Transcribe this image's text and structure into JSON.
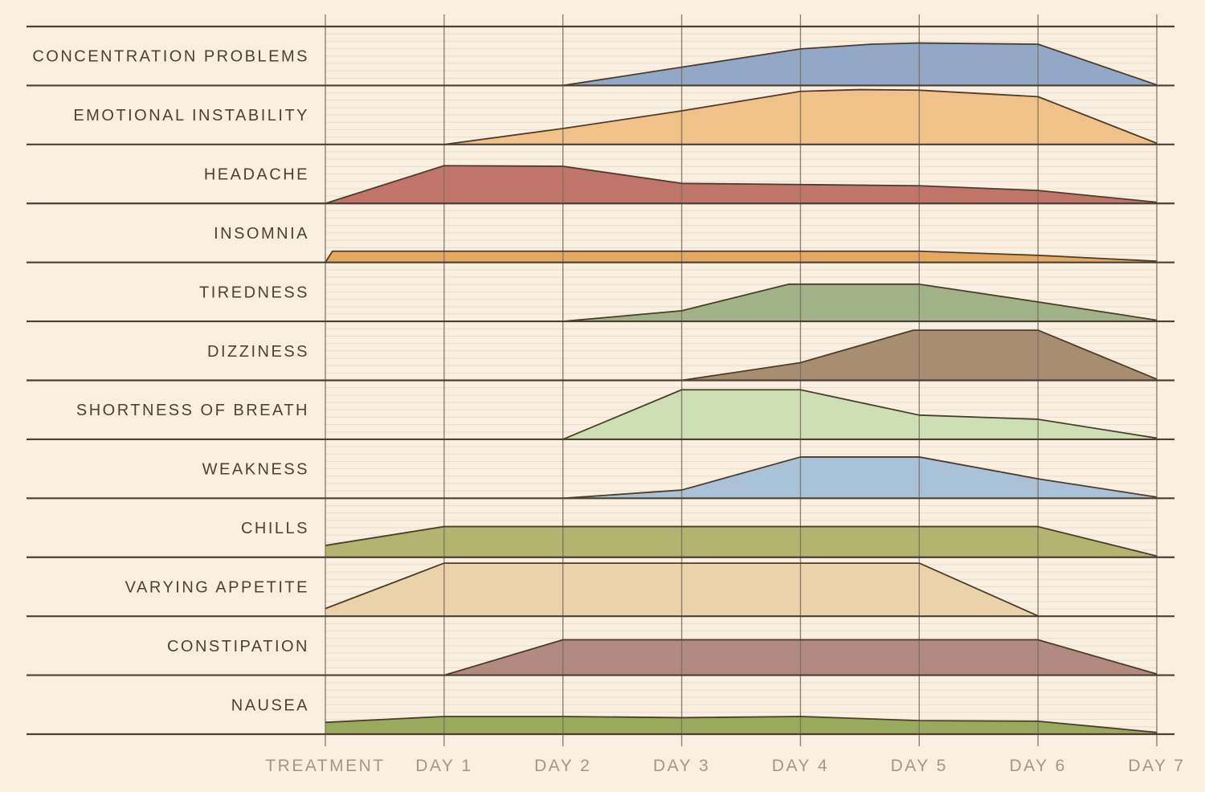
{
  "chart_data": {
    "type": "area",
    "variant": "ridgeline-small-multiples",
    "title": "",
    "xlabel": "",
    "ylabel": "",
    "grid": "ruled horizontal lines per row plus vertical day gridlines",
    "legend_position": "none",
    "x_categories": [
      "TREATMENT",
      "DAY 1",
      "DAY 2",
      "DAY 3",
      "DAY 4",
      "DAY 5",
      "DAY 6",
      "DAY 7"
    ],
    "value_units": "symptom intensity as fraction of row height (0 = none, 1 = row top)",
    "series": [
      {
        "label": "CONCENTRATION PROBLEMS",
        "color": "#93a7c7",
        "points": [
          [
            2,
            0
          ],
          [
            3,
            0.31
          ],
          [
            4,
            0.62
          ],
          [
            4.6,
            0.7
          ],
          [
            5,
            0.72
          ],
          [
            6,
            0.7
          ],
          [
            7,
            0.01
          ]
        ]
      },
      {
        "label": "EMOTIONAL INSTABILITY",
        "color": "#f0c28a",
        "points": [
          [
            1,
            0
          ],
          [
            2,
            0.27
          ],
          [
            3,
            0.57
          ],
          [
            4,
            0.9
          ],
          [
            4.5,
            0.93
          ],
          [
            5,
            0.92
          ],
          [
            6,
            0.81
          ],
          [
            7,
            0.02
          ]
        ]
      },
      {
        "label": "HEADACHE",
        "color": "#c1756a",
        "points": [
          [
            0,
            0
          ],
          [
            1,
            0.64
          ],
          [
            2,
            0.63
          ],
          [
            3,
            0.34
          ],
          [
            4,
            0.32
          ],
          [
            5,
            0.3
          ],
          [
            6,
            0.22
          ],
          [
            7,
            0.02
          ]
        ]
      },
      {
        "label": "INSOMNIA",
        "color": "#e3a960",
        "points": [
          [
            0,
            0
          ],
          [
            0.06,
            0.19
          ],
          [
            5,
            0.19
          ],
          [
            6,
            0.12
          ],
          [
            7,
            0.02
          ]
        ]
      },
      {
        "label": "TIREDNESS",
        "color": "#a1b287",
        "points": [
          [
            2,
            0
          ],
          [
            3,
            0.18
          ],
          [
            3.9,
            0.63
          ],
          [
            5,
            0.63
          ],
          [
            6,
            0.33
          ],
          [
            7,
            0.02
          ]
        ]
      },
      {
        "label": "DIZZINESS",
        "color": "#a78e71",
        "points": [
          [
            3,
            0
          ],
          [
            4,
            0.3
          ],
          [
            4.95,
            0.85
          ],
          [
            6,
            0.85
          ],
          [
            7,
            0.02
          ]
        ]
      },
      {
        "label": "SHORTNESS OF BREATH",
        "color": "#cfdfb4",
        "points": [
          [
            2,
            0
          ],
          [
            3,
            0.84
          ],
          [
            4,
            0.84
          ],
          [
            5,
            0.41
          ],
          [
            6,
            0.34
          ],
          [
            7,
            0.02
          ]
        ]
      },
      {
        "label": "WEAKNESS",
        "color": "#aac2d8",
        "points": [
          [
            2,
            0
          ],
          [
            3,
            0.14
          ],
          [
            4,
            0.7
          ],
          [
            5,
            0.7
          ],
          [
            6,
            0.33
          ],
          [
            7,
            0.02
          ]
        ]
      },
      {
        "label": "CHILLS",
        "color": "#b4b471",
        "points": [
          [
            0,
            0.2
          ],
          [
            1,
            0.52
          ],
          [
            6,
            0.52
          ],
          [
            7,
            0.02
          ]
        ]
      },
      {
        "label": "VARYING APPETITE",
        "color": "#ead2ab",
        "points": [
          [
            0,
            0.13
          ],
          [
            1,
            0.9
          ],
          [
            5,
            0.9
          ],
          [
            6,
            0.005
          ]
        ]
      },
      {
        "label": "CONSTIPATION",
        "color": "#b28a7f",
        "points": [
          [
            1,
            0
          ],
          [
            2,
            0.6
          ],
          [
            6,
            0.6
          ],
          [
            7,
            0.02
          ]
        ]
      },
      {
        "label": "NAUSEA",
        "color": "#9aaa5c",
        "points": [
          [
            0,
            0.2
          ],
          [
            1,
            0.3
          ],
          [
            2,
            0.3
          ],
          [
            3,
            0.28
          ],
          [
            4,
            0.3
          ],
          [
            5,
            0.23
          ],
          [
            6,
            0.22
          ],
          [
            7,
            0.03
          ]
        ]
      }
    ],
    "style": {
      "background": "#f9f0e1",
      "ruled_line": "#ecdbc9",
      "gridline": "#7a6f61",
      "separator": "#4b4033",
      "area_outline": "#4e3d2c",
      "row_label_color": "#513f33",
      "axis_label_color": "#a5968a"
    }
  }
}
